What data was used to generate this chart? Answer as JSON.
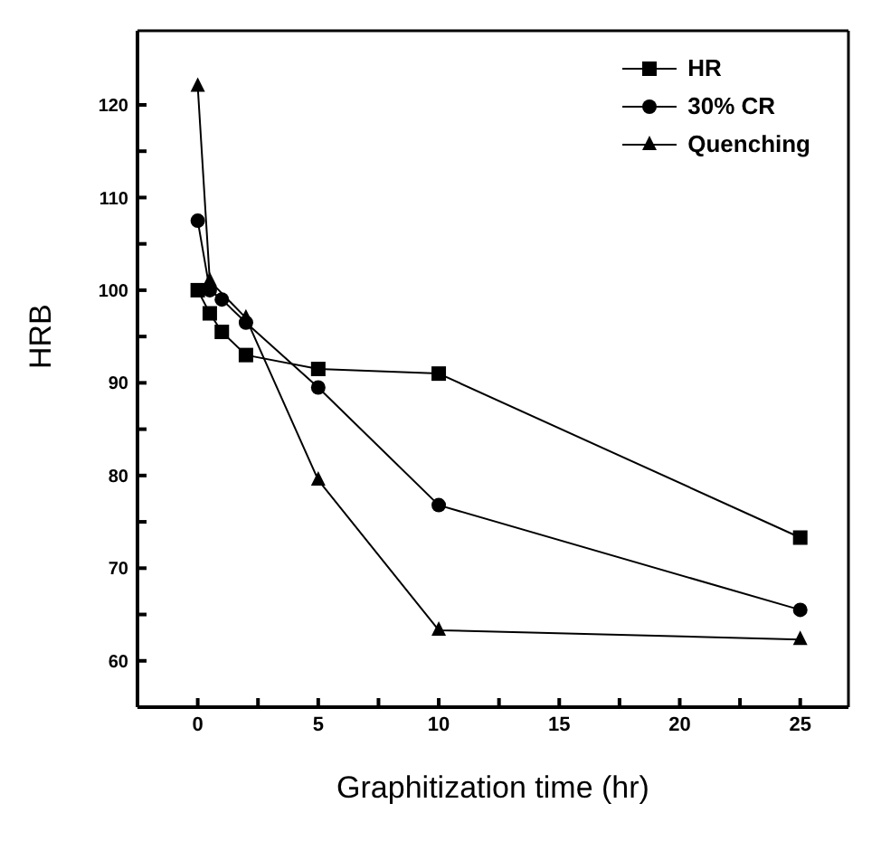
{
  "chart_data": {
    "type": "line",
    "xlabel": "Graphitization time (hr)",
    "ylabel": "HRB",
    "xlim": [
      -2.5,
      27
    ],
    "ylim": [
      55,
      128
    ],
    "xticks": [
      0,
      {
        "value": 2.5,
        "label": null
      },
      5,
      {
        "value": 7.5,
        "label": null
      },
      10,
      {
        "value": 12.5,
        "label": null
      },
      15,
      {
        "value": 17.5,
        "label": null
      },
      20,
      {
        "value": 22.5,
        "label": null
      },
      25
    ],
    "yticks": [
      60,
      {
        "value": 65,
        "label": null
      },
      70,
      {
        "value": 75,
        "label": null
      },
      80,
      {
        "value": 85,
        "label": null
      },
      90,
      {
        "value": 95,
        "label": null
      },
      100,
      {
        "value": 105,
        "label": null
      },
      110,
      {
        "value": 115,
        "label": null
      },
      120
    ],
    "legend": "top right",
    "line_style": "solid",
    "series": [
      {
        "name": "HR",
        "color": "#000000",
        "marker": "square",
        "x": [
          0,
          0.5,
          1,
          2,
          5,
          10,
          25
        ],
        "values": [
          100,
          97.5,
          95.5,
          93,
          91.5,
          91,
          73.3
        ]
      },
      {
        "name": "30% CR",
        "color": "#000000",
        "marker": "circle",
        "x": [
          0,
          0.5,
          1,
          2,
          5,
          10,
          25
        ],
        "values": [
          107.5,
          100,
          99,
          96.5,
          89.5,
          76.8,
          65.5
        ]
      },
      {
        "name": "Quenching",
        "color": "#000000",
        "marker": "triangle",
        "x": [
          0,
          0.5,
          2,
          5,
          10,
          25
        ],
        "values": [
          122,
          101,
          97,
          79.5,
          63.3,
          62.3
        ]
      }
    ]
  }
}
